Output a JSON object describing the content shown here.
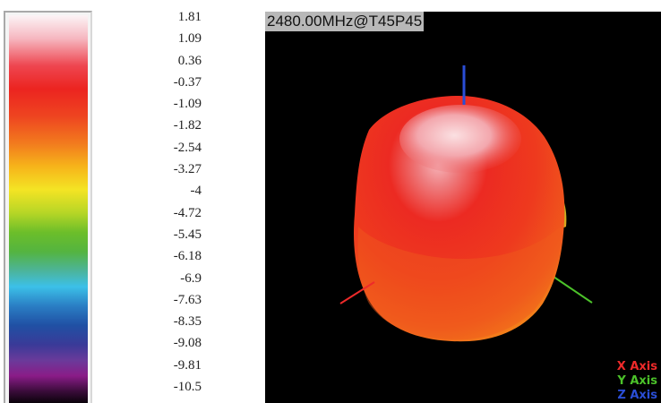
{
  "plot": {
    "title": "2480.00MHz@T45P45"
  },
  "color_scale": {
    "labels": [
      "1.81",
      "1.09",
      "0.36",
      "-0.37",
      "-1.09",
      "-1.82",
      "-2.54",
      "-3.27",
      "-4",
      "-4.72",
      "-5.45",
      "-6.18",
      "-6.9",
      "-7.63",
      "-8.35",
      "-9.08",
      "-9.81",
      "-10.5"
    ]
  },
  "axis_legend": [
    {
      "label": "X Axis",
      "color": "#ee2a2a"
    },
    {
      "label": "Y Axis",
      "color": "#4cc22a"
    },
    {
      "label": "Z Axis",
      "color": "#2a4ed6"
    }
  ]
}
